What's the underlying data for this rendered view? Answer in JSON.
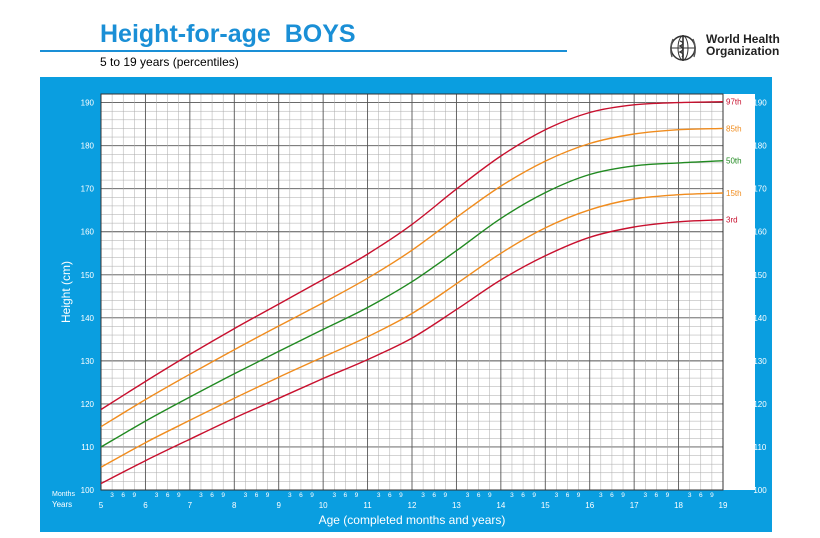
{
  "header": {
    "title": "Height-for-age  BOYS",
    "subtitle": "5 to 19 years (percentiles)",
    "org_line1": "World Health",
    "org_line2": "Organization"
  },
  "colors": {
    "brand_blue": "#1a8fd6",
    "panel": "#0a9ee0",
    "p3": "#c8102e",
    "p15": "#f08c1e",
    "p50": "#218a21",
    "p85": "#f08c1e",
    "p97": "#c8102e"
  },
  "icons": {
    "logo": "who-emblem-icon"
  },
  "chart_data": {
    "type": "line",
    "title": "Height-for-age  BOYS",
    "subtitle": "5 to 19 years (percentiles)",
    "xlabel": "Age (completed months and years)",
    "ylabel": "Height (cm)",
    "x_row_label_months": "Months",
    "x_row_label_years": "Years",
    "xlim": [
      5,
      19
    ],
    "ylim": [
      100,
      192
    ],
    "x_tick_labels": [
      "5",
      "6",
      "7",
      "8",
      "9",
      "10",
      "11",
      "12",
      "13",
      "14",
      "15",
      "16",
      "17",
      "18",
      "19"
    ],
    "month_tick_labels": [
      "3",
      "6",
      "9"
    ],
    "y_tick_labels": [
      "100",
      "110",
      "120",
      "130",
      "140",
      "150",
      "160",
      "170",
      "180",
      "190"
    ],
    "grid": true,
    "x": [
      5,
      6,
      7,
      8,
      9,
      10,
      11,
      12,
      13,
      14,
      15,
      16,
      17,
      18,
      19
    ],
    "series": [
      {
        "name": "3rd",
        "values": [
          101.5,
          106.8,
          111.8,
          116.7,
          121.3,
          125.9,
          130.3,
          135.3,
          141.9,
          148.8,
          154.4,
          158.7,
          161.1,
          162.3,
          162.8
        ]
      },
      {
        "name": "15th",
        "values": [
          105.3,
          111.0,
          116.2,
          121.3,
          126.2,
          130.9,
          135.6,
          141.0,
          147.9,
          155.0,
          160.9,
          165.1,
          167.6,
          168.6,
          169.0
        ]
      },
      {
        "name": "50th",
        "values": [
          110.0,
          116.0,
          121.6,
          127.0,
          132.2,
          137.3,
          142.4,
          148.4,
          155.6,
          163.1,
          169.1,
          173.3,
          175.3,
          176.0,
          176.5
        ]
      },
      {
        "name": "85th",
        "values": [
          114.7,
          121.0,
          126.9,
          132.6,
          138.1,
          143.5,
          149.2,
          155.7,
          163.3,
          170.6,
          176.4,
          180.5,
          182.7,
          183.7,
          184.0
        ]
      },
      {
        "name": "97th",
        "values": [
          118.7,
          125.2,
          131.5,
          137.5,
          143.2,
          148.9,
          154.8,
          161.7,
          169.9,
          177.6,
          183.7,
          187.7,
          189.5,
          190.0,
          190.2
        ]
      }
    ]
  }
}
